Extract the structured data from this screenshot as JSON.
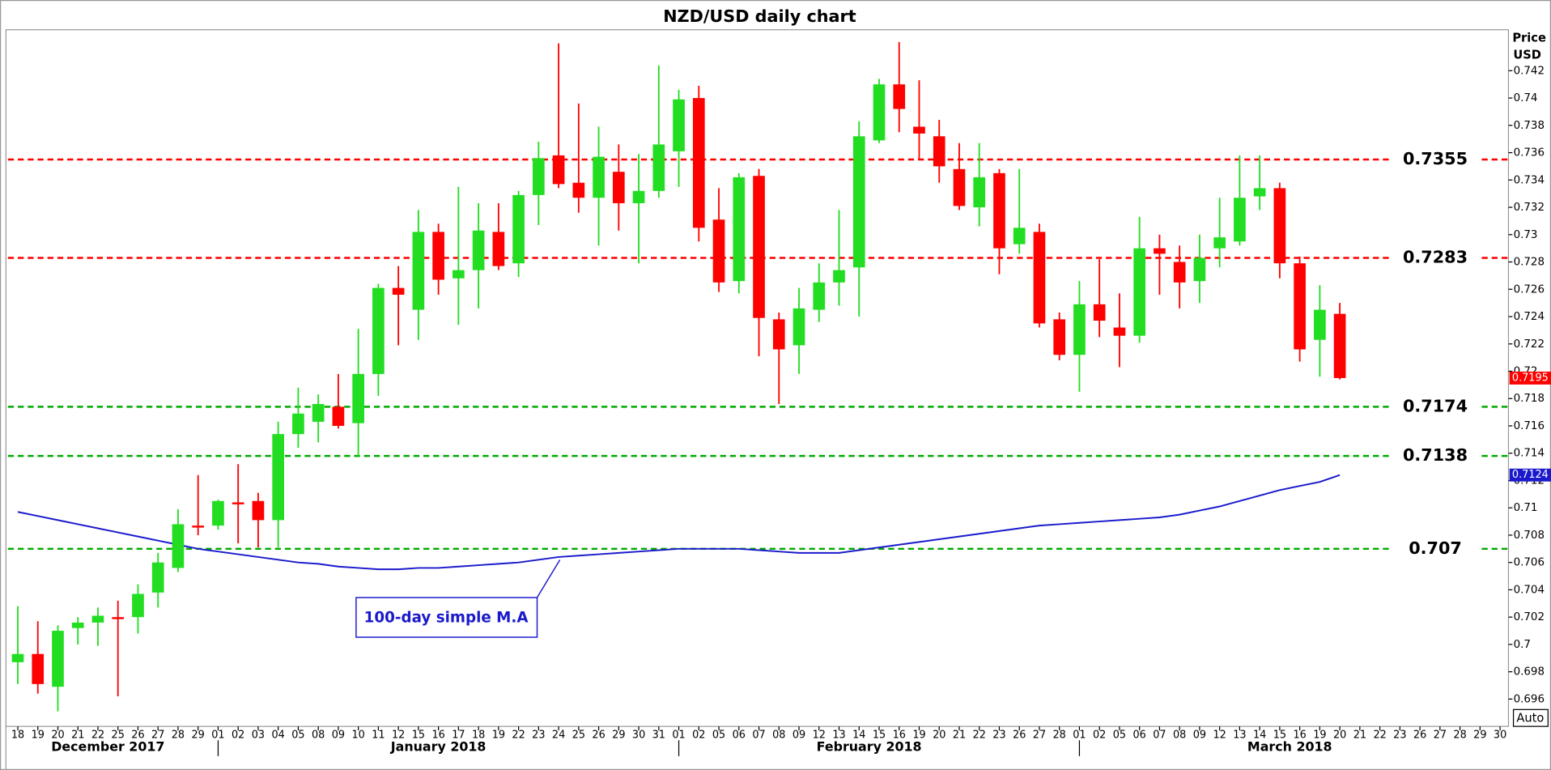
{
  "chart_data": {
    "type": "candlestick",
    "title": "NZD/USD daily chart",
    "y_label": [
      "Price",
      "USD"
    ],
    "button": "Auto",
    "categories": [
      "18",
      "19",
      "20",
      "21",
      "22",
      "25",
      "26",
      "27",
      "28",
      "29",
      "01",
      "02",
      "03",
      "04",
      "05",
      "08",
      "09",
      "10",
      "11",
      "12",
      "15",
      "16",
      "17",
      "18",
      "19",
      "22",
      "23",
      "24",
      "25",
      "26",
      "29",
      "30",
      "31",
      "01",
      "02",
      "05",
      "06",
      "07",
      "08",
      "09",
      "12",
      "13",
      "14",
      "15",
      "16",
      "19",
      "20",
      "21",
      "22",
      "23",
      "26",
      "27",
      "28",
      "01",
      "02",
      "05",
      "06",
      "07",
      "08",
      "09",
      "12",
      "13",
      "14",
      "15",
      "16",
      "19",
      "20",
      "21",
      "22",
      "23",
      "26",
      "27",
      "28",
      "29",
      "30"
    ],
    "months": [
      "December 2017",
      "January 2018",
      "February 2018",
      "March 2018"
    ],
    "candles": {
      "up_color": "#22dd22",
      "down_color": "#ff0000",
      "open": [
        0.6987,
        0.6993,
        0.6969,
        0.7012,
        0.7016,
        0.702,
        0.702,
        0.7038,
        0.7056,
        0.7087,
        0.7087,
        0.7104,
        0.7105,
        0.7091,
        0.7154,
        0.7163,
        0.7174,
        0.7162,
        0.7198,
        0.7261,
        0.7245,
        0.7302,
        0.7268,
        0.7274,
        0.7302,
        0.7279,
        0.7329,
        0.7358,
        0.7338,
        0.7327,
        0.7346,
        0.7323,
        0.7332,
        0.7361,
        0.74,
        0.7311,
        0.7266,
        0.7343,
        0.7238,
        0.7219,
        0.7245,
        0.7265,
        0.7276,
        0.7369,
        0.741,
        0.7379,
        0.7372,
        0.7348,
        0.732,
        0.7345,
        0.7293,
        0.7302,
        0.7238,
        0.7212,
        0.7249,
        0.7232,
        0.7226,
        0.729,
        0.728,
        0.7266,
        0.729,
        0.7295,
        0.7328,
        0.7334,
        0.7279,
        0.7223,
        0.7242,
        null,
        null,
        null,
        null,
        null,
        null,
        null,
        null
      ],
      "high": [
        0.7028,
        0.7017,
        0.7014,
        0.702,
        0.7027,
        0.7032,
        0.7044,
        0.7067,
        0.7099,
        0.7124,
        0.7106,
        0.7132,
        0.7111,
        0.7163,
        0.7188,
        0.7183,
        0.7198,
        0.7231,
        0.7264,
        0.7277,
        0.7318,
        0.7308,
        0.7335,
        0.7323,
        0.7323,
        0.7332,
        0.7368,
        0.744,
        0.7396,
        0.7379,
        0.7366,
        0.7359,
        0.7424,
        0.7406,
        0.7409,
        0.7334,
        0.7345,
        0.7348,
        0.7243,
        0.7261,
        0.7279,
        0.7318,
        0.7383,
        0.7414,
        0.7441,
        0.7413,
        0.7384,
        0.7367,
        0.7367,
        0.7348,
        0.7348,
        0.7308,
        0.7243,
        0.7266,
        0.7282,
        0.7257,
        0.7313,
        0.73,
        0.7292,
        0.73,
        0.7327,
        0.7358,
        0.7358,
        0.7338,
        0.7284,
        0.7263,
        0.725,
        null,
        null,
        null,
        null,
        null,
        null,
        null,
        null
      ],
      "low": [
        0.6971,
        0.6964,
        0.6951,
        0.7,
        0.6999,
        0.6962,
        0.7008,
        0.7027,
        0.7053,
        0.708,
        0.7084,
        0.7074,
        0.7071,
        0.7071,
        0.7144,
        0.7148,
        0.7158,
        0.7138,
        0.7182,
        0.7219,
        0.7223,
        0.7256,
        0.7234,
        0.7246,
        0.7274,
        0.7269,
        0.7307,
        0.7334,
        0.7316,
        0.7292,
        0.7303,
        0.7279,
        0.7327,
        0.7335,
        0.7295,
        0.7258,
        0.7257,
        0.7211,
        0.7176,
        0.7198,
        0.7236,
        0.7248,
        0.724,
        0.7367,
        0.7375,
        0.7355,
        0.7338,
        0.7318,
        0.7306,
        0.7271,
        0.7286,
        0.7232,
        0.7208,
        0.7185,
        0.7225,
        0.7203,
        0.7221,
        0.7256,
        0.7246,
        0.725,
        0.7276,
        0.7292,
        0.7318,
        0.7268,
        0.7207,
        0.7196,
        0.7194,
        null,
        null,
        null,
        null,
        null,
        null,
        null,
        null
      ],
      "close": [
        0.6993,
        0.6971,
        0.701,
        0.7016,
        0.7021,
        0.702,
        0.7037,
        0.706,
        0.7088,
        0.7087,
        0.7105,
        0.7104,
        0.7091,
        0.7154,
        0.7169,
        0.7176,
        0.716,
        0.7198,
        0.7261,
        0.7256,
        0.7302,
        0.7267,
        0.7274,
        0.7303,
        0.7277,
        0.7329,
        0.7356,
        0.7337,
        0.7327,
        0.7357,
        0.7323,
        0.7332,
        0.7366,
        0.7399,
        0.7305,
        0.7265,
        0.7342,
        0.7239,
        0.7216,
        0.7246,
        0.7265,
        0.7274,
        0.7372,
        0.741,
        0.7392,
        0.7374,
        0.735,
        0.7321,
        0.7342,
        0.729,
        0.7305,
        0.7235,
        0.7212,
        0.7249,
        0.7237,
        0.7226,
        0.729,
        0.7286,
        0.7265,
        0.7283,
        0.7298,
        0.7327,
        0.7334,
        0.7279,
        0.7216,
        0.7245,
        0.7195,
        null,
        null,
        null,
        null,
        null,
        null,
        null,
        null
      ]
    },
    "ma": {
      "name": "100-day simple M.A",
      "color": "#1a1acc",
      "values": [
        0.7097,
        0.7094,
        0.7091,
        0.7088,
        0.7085,
        0.7082,
        0.7079,
        0.7076,
        0.7073,
        0.707,
        0.7068,
        0.7066,
        0.7064,
        0.7062,
        0.706,
        0.7059,
        0.7057,
        0.7056,
        0.7055,
        0.7055,
        0.7056,
        0.7056,
        0.7057,
        0.7058,
        0.7059,
        0.706,
        0.7062,
        0.7064,
        0.7065,
        0.7066,
        0.7067,
        0.7068,
        0.7069,
        0.707,
        0.707,
        0.707,
        0.707,
        0.7069,
        0.7068,
        0.7067,
        0.7067,
        0.7067,
        0.7069,
        0.7071,
        0.7073,
        0.7075,
        0.7077,
        0.7079,
        0.7081,
        0.7083,
        0.7085,
        0.7087,
        0.7088,
        0.7089,
        0.709,
        0.7091,
        0.7092,
        0.7093,
        0.7095,
        0.7098,
        0.7101,
        0.7105,
        0.7109,
        0.7113,
        0.7116,
        0.7119,
        0.7124,
        null,
        null,
        null,
        null,
        null,
        null,
        null,
        null
      ]
    },
    "levels": [
      {
        "value": 0.7355,
        "color": "#ff0000"
      },
      {
        "value": 0.7283,
        "color": "#ff0000"
      },
      {
        "value": 0.7174,
        "color": "#00aa00"
      },
      {
        "value": 0.7138,
        "color": "#00aa00"
      },
      {
        "value": 0.707,
        "color": "#00aa00"
      }
    ],
    "ylim": [
      0.694,
      0.745
    ],
    "yticks": [
      0.696,
      0.698,
      0.7,
      0.702,
      0.704,
      0.706,
      0.708,
      0.71,
      0.712,
      0.714,
      0.716,
      0.718,
      0.72,
      0.722,
      0.724,
      0.726,
      0.728,
      0.73,
      0.732,
      0.734,
      0.736,
      0.738,
      0.74,
      0.742
    ],
    "grid": false
  }
}
